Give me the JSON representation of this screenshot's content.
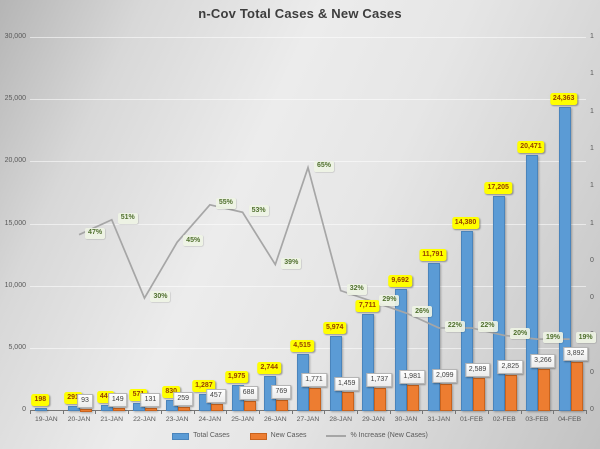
{
  "title": "n-Cov Total Cases & New Cases",
  "chart_data": {
    "type": "bar",
    "subtype": "combo-bar-line",
    "title": "n-Cov Total Cases & New Cases",
    "categories": [
      "19-JAN",
      "20-JAN",
      "21-JAN",
      "22-JAN",
      "23-JAN",
      "24-JAN",
      "25-JAN",
      "26-JAN",
      "27-JAN",
      "28-JAN",
      "29-JAN",
      "30-JAN",
      "31-JAN",
      "01-FEB",
      "02-FEB",
      "03-FEB",
      "04-FEB"
    ],
    "series": [
      {
        "name": "Total Cases",
        "type": "bar",
        "axis": "left",
        "color": "#5B9BD5",
        "values": [
          198,
          291,
          440,
          571,
          830,
          1287,
          1975,
          2744,
          4515,
          5974,
          7711,
          9692,
          11791,
          14380,
          17205,
          20471,
          24363
        ],
        "labels": [
          "198",
          "291",
          "440",
          "571",
          "830",
          "1,287",
          "1,975",
          "2,744",
          "4,515",
          "5,974",
          "7,711",
          "9,692",
          "11,791",
          "14,380",
          "17,205",
          "20,471",
          "24,363"
        ],
        "label_bg": "#FFFF00",
        "label_color": "#963F00"
      },
      {
        "name": "New Cases",
        "type": "bar",
        "axis": "left",
        "color": "#ED7D31",
        "values": [
          null,
          93,
          149,
          131,
          259,
          457,
          688,
          769,
          1771,
          1459,
          1737,
          1981,
          2099,
          2589,
          2825,
          3266,
          3892
        ],
        "labels": [
          "",
          "93",
          "149",
          "131",
          "259",
          "457",
          "688",
          "769",
          "1,771",
          "1,459",
          "1,737",
          "1,981",
          "2,099",
          "2,589",
          "2,825",
          "3,266",
          "3,892"
        ],
        "label_bg": "#FFFFFF",
        "label_color": "#404040"
      },
      {
        "name": "% Increase (New Cases)",
        "type": "line",
        "axis": "right",
        "color": "#A6A6A6",
        "values": [
          null,
          0.47,
          0.51,
          0.3,
          0.45,
          0.55,
          0.53,
          0.39,
          0.65,
          0.32,
          0.29,
          0.26,
          0.22,
          0.22,
          0.2,
          0.19,
          0.19
        ],
        "labels": [
          "",
          "47%",
          "51%",
          "30%",
          "45%",
          "55%",
          "53%",
          "39%",
          "65%",
          "32%",
          "29%",
          "26%",
          "22%",
          "22%",
          "20%",
          "19%",
          "19%"
        ],
        "label_bg": "#EEF3E4",
        "label_color": "#50702E"
      }
    ],
    "left_axis": {
      "min": 0,
      "max": 30000,
      "tick_labels": [
        "30,000",
        "25,000",
        "20,000",
        "15,000",
        "10,000",
        "5,000",
        "0"
      ]
    },
    "right_axis": {
      "min": 0,
      "max": 1,
      "tick_labels": [
        "1",
        "1",
        "1",
        "1",
        "1",
        "1",
        "0",
        "0",
        "0",
        "0",
        "0"
      ]
    },
    "grid": true,
    "legend_position": "bottom",
    "legend": [
      {
        "label": "Total Cases",
        "swatch": "bar",
        "color": "#5B9BD5",
        "border": "#4a84bb"
      },
      {
        "label": "New Cases",
        "swatch": "bar",
        "color": "#ED7D31",
        "border": "#c9631d"
      },
      {
        "label": "% Increase (New Cases)",
        "swatch": "line",
        "color": "#A6A6A6"
      }
    ]
  }
}
